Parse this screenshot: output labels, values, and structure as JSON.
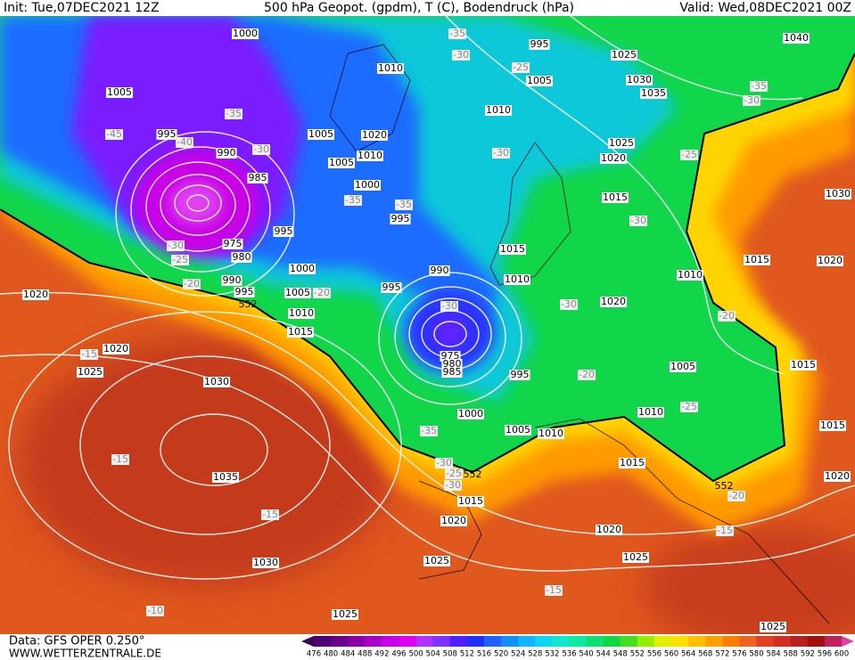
{
  "header": {
    "init": "Init: Tue,07DEC2021 12Z",
    "title": "500 hPa Geopot. (gpdm), T (C), Bodendruck (hPa)",
    "valid": "Valid: Wed,08DEC2021 00Z"
  },
  "footer": {
    "data": "Data: GFS OPER 0.250°",
    "site": "WWW.WETTERZENTRALE.DE"
  },
  "colorbar": {
    "ticks": [
      476,
      480,
      484,
      488,
      492,
      496,
      500,
      504,
      508,
      512,
      516,
      520,
      524,
      528,
      532,
      536,
      540,
      544,
      548,
      552,
      556,
      560,
      564,
      568,
      572,
      576,
      580,
      584,
      588,
      592,
      596,
      600
    ],
    "colors": [
      "#3c0050",
      "#50006e",
      "#6a0088",
      "#8a00a8",
      "#a800c8",
      "#c800e6",
      "#e000f0",
      "#b030ff",
      "#8030ff",
      "#5020ff",
      "#2030ff",
      "#2060ff",
      "#1090ff",
      "#10b4ff",
      "#10d4f0",
      "#10e8d0",
      "#10e8a0",
      "#10e070",
      "#10d840",
      "#40e020",
      "#90f000",
      "#e0f000",
      "#ffe000",
      "#ffc000",
      "#ffa000",
      "#ff8000",
      "#f06020",
      "#e04020",
      "#d03020",
      "#b82020",
      "#a01010",
      "#c02060",
      "#e040a0"
    ]
  },
  "isobar_labels": [
    "1000",
    "995",
    "1040",
    "1010",
    "1025",
    "1005",
    "1030",
    "1035",
    "1005",
    "1010",
    "995",
    "1005",
    "1020",
    "1010",
    "1025",
    "1020",
    "990",
    "1005",
    "985",
    "1000",
    "1015",
    "1030",
    "995",
    "995",
    "975",
    "980",
    "1015",
    "1015",
    "1020",
    "990",
    "1000",
    "1010",
    "1010",
    "990",
    "995",
    "995",
    "1005",
    "1020",
    "1020",
    "1010",
    "1015",
    "975",
    "980",
    "985",
    "1020",
    "1025",
    "995",
    "1005",
    "1015",
    "1030",
    "1010",
    "1000",
    "1005",
    "1010",
    "1015",
    "1015",
    "1035",
    "1020",
    "1015",
    "1020",
    "1020",
    "1025",
    "1025",
    "1030",
    "1025",
    "1025"
  ],
  "temperature_labels": [
    "-35",
    "-30",
    "-25",
    "-35",
    "-45",
    "-40",
    "-30",
    "-35",
    "-30",
    "-25",
    "-30",
    "-35",
    "-35",
    "-30",
    "-25",
    "-20",
    "-20",
    "-30",
    "-30",
    "-30",
    "-20",
    "-15",
    "-20",
    "-25",
    "-35",
    "-30",
    "-25",
    "-30",
    "-20",
    "-15",
    "-15",
    "-15",
    "-15",
    "-10"
  ],
  "height_labels": [
    "552",
    "552",
    "552"
  ]
}
